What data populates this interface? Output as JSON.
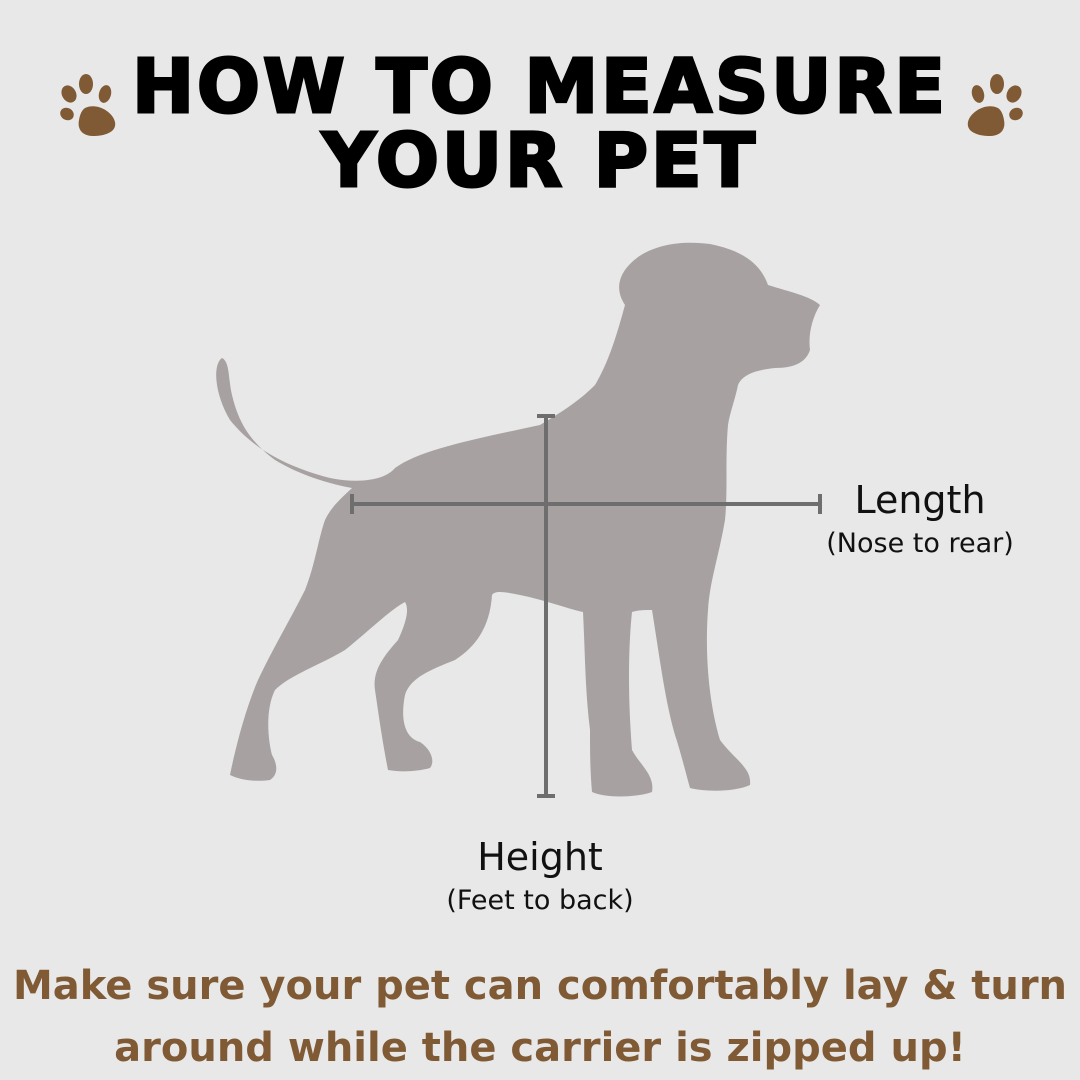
{
  "title": {
    "line1": "HOW TO MEASURE",
    "line2": "YOUR PET"
  },
  "icons": {
    "left": "paw-print-icon",
    "right": "paw-print-icon"
  },
  "length": {
    "label": "Length",
    "detail": "(Nose to rear)"
  },
  "height": {
    "label": "Height",
    "detail": "(Feet to back)"
  },
  "note": {
    "line1": "Make sure your pet can comfortably lay & turn",
    "line2": "around while the carrier is zipped up!"
  },
  "colors": {
    "background": "#e8e8e8",
    "accent": "#7f5a35",
    "silhouette": "#a7a2a1",
    "measure_line": "#6e6e6e"
  }
}
